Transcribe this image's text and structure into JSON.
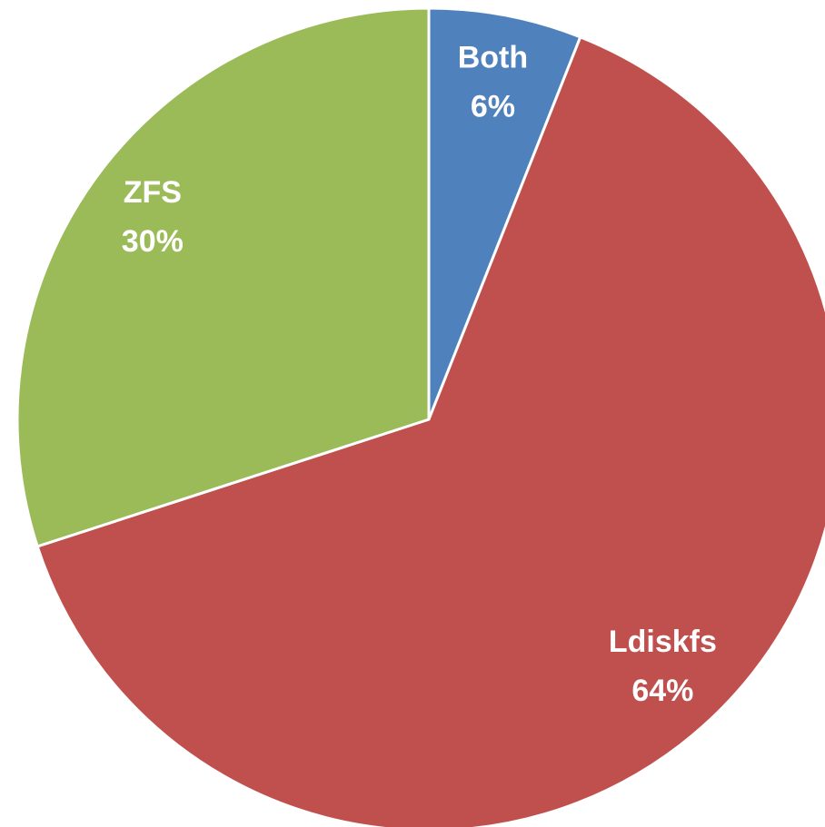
{
  "chart_data": {
    "type": "pie",
    "categories": [
      "Both",
      "Ldiskfs",
      "ZFS"
    ],
    "values": [
      6,
      64,
      30
    ],
    "value_labels": [
      "6%",
      "64%",
      "30%"
    ],
    "colors": [
      "#4f81bd",
      "#c0504d",
      "#9bbb59"
    ]
  }
}
